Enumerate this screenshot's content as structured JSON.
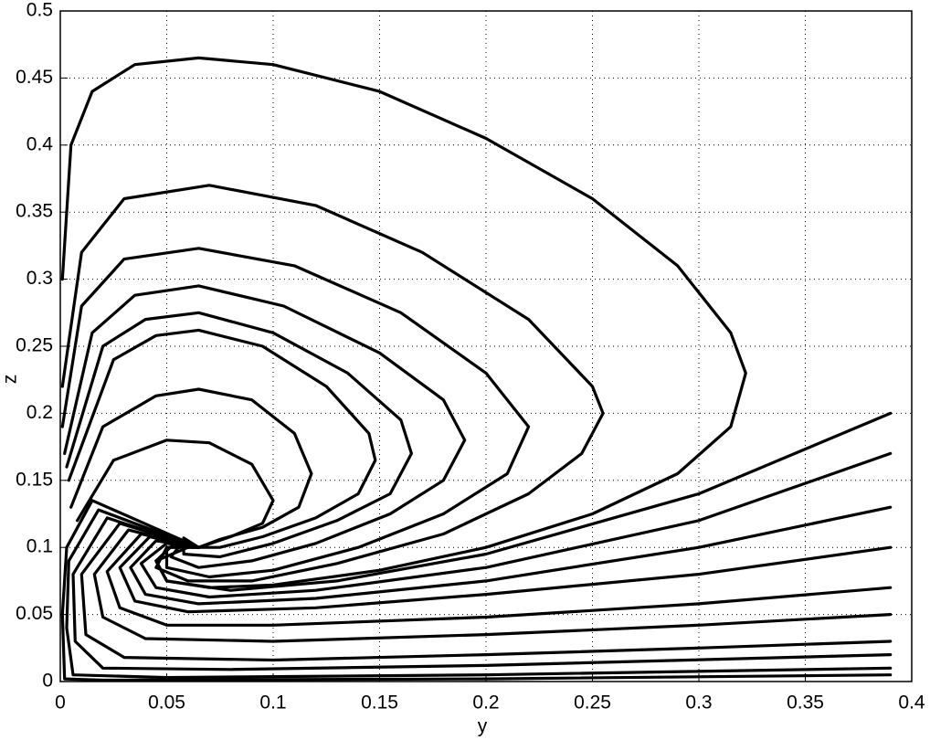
{
  "chart_data": {
    "type": "line",
    "xlabel": "y",
    "ylabel": "z",
    "xlim": [
      0,
      0.4
    ],
    "ylim": [
      0,
      0.5
    ],
    "xticks": [
      0,
      0.05,
      0.1,
      0.15,
      0.2,
      0.25,
      0.3,
      0.35,
      0.4
    ],
    "yticks": [
      0,
      0.05,
      0.1,
      0.15,
      0.2,
      0.25,
      0.3,
      0.35,
      0.4,
      0.45,
      0.5
    ],
    "grid": true,
    "series": [
      {
        "color": "#000000",
        "x": [
          0.001,
          0.005,
          0.015,
          0.035,
          0.065,
          0.1,
          0.15,
          0.2,
          0.25,
          0.29,
          0.315,
          0.322,
          0.315,
          0.29,
          0.25,
          0.2,
          0.15,
          0.1,
          0.07,
          0.05,
          0.045,
          0.055,
          0.065
        ],
        "values": [
          0.3,
          0.4,
          0.44,
          0.46,
          0.465,
          0.46,
          0.44,
          0.405,
          0.36,
          0.31,
          0.26,
          0.23,
          0.19,
          0.155,
          0.125,
          0.1,
          0.083,
          0.072,
          0.07,
          0.075,
          0.09,
          0.105,
          0.1
        ]
      },
      {
        "color": "#000000",
        "x": [
          0.001,
          0.01,
          0.03,
          0.07,
          0.12,
          0.17,
          0.22,
          0.25,
          0.255,
          0.245,
          0.22,
          0.18,
          0.13,
          0.09,
          0.06,
          0.045,
          0.05,
          0.065
        ],
        "values": [
          0.22,
          0.32,
          0.36,
          0.37,
          0.355,
          0.32,
          0.27,
          0.22,
          0.2,
          0.17,
          0.14,
          0.11,
          0.088,
          0.075,
          0.075,
          0.085,
          0.1,
          0.1
        ]
      },
      {
        "color": "#000000",
        "x": [
          0.001,
          0.01,
          0.03,
          0.065,
          0.11,
          0.16,
          0.2,
          0.22,
          0.21,
          0.18,
          0.14,
          0.1,
          0.07,
          0.05,
          0.05,
          0.065
        ],
        "values": [
          0.19,
          0.28,
          0.315,
          0.323,
          0.31,
          0.275,
          0.23,
          0.19,
          0.155,
          0.125,
          0.1,
          0.083,
          0.078,
          0.085,
          0.1,
          0.1
        ]
      },
      {
        "color": "#000000",
        "x": [
          0.002,
          0.015,
          0.035,
          0.065,
          0.105,
          0.15,
          0.18,
          0.19,
          0.18,
          0.155,
          0.12,
          0.09,
          0.065,
          0.052,
          0.058,
          0.065
        ],
        "values": [
          0.17,
          0.26,
          0.288,
          0.295,
          0.28,
          0.245,
          0.21,
          0.18,
          0.15,
          0.125,
          0.103,
          0.09,
          0.085,
          0.093,
          0.105,
          0.1
        ]
      },
      {
        "color": "#000000",
        "x": [
          0.003,
          0.02,
          0.04,
          0.065,
          0.1,
          0.135,
          0.16,
          0.165,
          0.155,
          0.13,
          0.1,
          0.075,
          0.058,
          0.058,
          0.065
        ],
        "values": [
          0.16,
          0.25,
          0.27,
          0.275,
          0.26,
          0.23,
          0.195,
          0.17,
          0.14,
          0.12,
          0.103,
          0.093,
          0.095,
          0.107,
          0.1
        ]
      },
      {
        "color": "#000000",
        "x": [
          0.004,
          0.025,
          0.045,
          0.065,
          0.095,
          0.125,
          0.145,
          0.148,
          0.14,
          0.12,
          0.095,
          0.075,
          0.062,
          0.065
        ],
        "values": [
          0.15,
          0.24,
          0.258,
          0.262,
          0.25,
          0.22,
          0.185,
          0.165,
          0.14,
          0.122,
          0.108,
          0.1,
          0.1,
          0.1
        ]
      },
      {
        "color": "#000000",
        "x": [
          0.005,
          0.02,
          0.045,
          0.065,
          0.09,
          0.11,
          0.118,
          0.112,
          0.095,
          0.075,
          0.065
        ],
        "values": [
          0.13,
          0.19,
          0.213,
          0.218,
          0.21,
          0.185,
          0.155,
          0.13,
          0.115,
          0.106,
          0.1
        ]
      },
      {
        "color": "#000000",
        "x": [
          0.008,
          0.025,
          0.05,
          0.07,
          0.09,
          0.1,
          0.095,
          0.08,
          0.065
        ],
        "values": [
          0.12,
          0.165,
          0.18,
          0.178,
          0.162,
          0.135,
          0.118,
          0.108,
          0.1
        ]
      },
      {
        "color": "#000000",
        "x": [
          0.39,
          0.3,
          0.2,
          0.13,
          0.08,
          0.05,
          0.045,
          0.06
        ],
        "values": [
          0.2,
          0.14,
          0.095,
          0.075,
          0.068,
          0.075,
          0.09,
          0.1
        ]
      },
      {
        "color": "#000000",
        "x": [
          0.39,
          0.3,
          0.2,
          0.12,
          0.07,
          0.045,
          0.038,
          0.05,
          0.065
        ],
        "values": [
          0.17,
          0.12,
          0.085,
          0.068,
          0.063,
          0.07,
          0.088,
          0.103,
          0.1
        ]
      },
      {
        "color": "#000000",
        "x": [
          0.39,
          0.3,
          0.2,
          0.12,
          0.065,
          0.04,
          0.033,
          0.045,
          0.065
        ],
        "values": [
          0.13,
          0.1,
          0.075,
          0.062,
          0.058,
          0.065,
          0.085,
          0.105,
          0.1
        ]
      },
      {
        "color": "#000000",
        "x": [
          0.39,
          0.3,
          0.2,
          0.12,
          0.06,
          0.035,
          0.028,
          0.042,
          0.065
        ],
        "values": [
          0.1,
          0.08,
          0.065,
          0.055,
          0.052,
          0.06,
          0.085,
          0.108,
          0.1
        ]
      },
      {
        "color": "#000000",
        "x": [
          0.39,
          0.3,
          0.2,
          0.1,
          0.05,
          0.028,
          0.022,
          0.038,
          0.065
        ],
        "values": [
          0.07,
          0.058,
          0.048,
          0.042,
          0.042,
          0.055,
          0.082,
          0.11,
          0.1
        ]
      },
      {
        "color": "#000000",
        "x": [
          0.39,
          0.3,
          0.2,
          0.1,
          0.04,
          0.02,
          0.016,
          0.032,
          0.065
        ],
        "values": [
          0.05,
          0.042,
          0.035,
          0.03,
          0.032,
          0.048,
          0.08,
          0.113,
          0.1
        ]
      },
      {
        "color": "#000000",
        "x": [
          0.39,
          0.3,
          0.2,
          0.1,
          0.03,
          0.012,
          0.01,
          0.028,
          0.065
        ],
        "values": [
          0.03,
          0.025,
          0.02,
          0.016,
          0.018,
          0.035,
          0.08,
          0.118,
          0.1
        ]
      },
      {
        "color": "#000000",
        "x": [
          0.39,
          0.2,
          0.08,
          0.02,
          0.007,
          0.006,
          0.022,
          0.065
        ],
        "values": [
          0.02,
          0.012,
          0.009,
          0.01,
          0.03,
          0.08,
          0.122,
          0.1
        ]
      },
      {
        "color": "#000000",
        "x": [
          0.39,
          0.2,
          0.05,
          0.006,
          0.003,
          0.004,
          0.018,
          0.065
        ],
        "values": [
          0.01,
          0.005,
          0.003,
          0.005,
          0.04,
          0.09,
          0.128,
          0.1
        ]
      },
      {
        "color": "#000000",
        "x": [
          0.39,
          0.2,
          0.02,
          0.002,
          0.001,
          0.003,
          0.015,
          0.065
        ],
        "values": [
          0.005,
          0.002,
          0.001,
          0.002,
          0.05,
          0.1,
          0.135,
          0.1
        ]
      }
    ]
  }
}
